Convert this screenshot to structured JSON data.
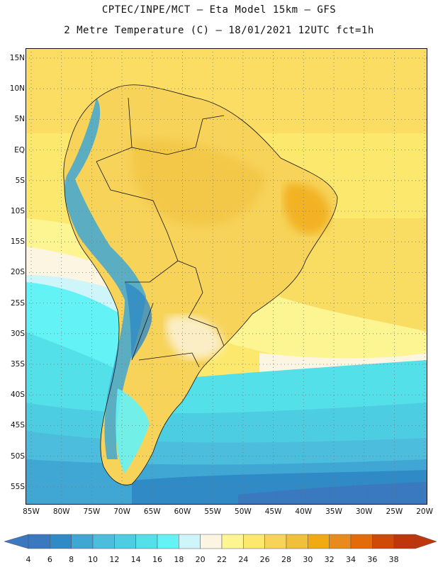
{
  "title_line1": "CPTEC/INPE/MCT –  Eta Model 15km – GFS",
  "title_line2": "2 Metre Temperature (C) – 18/01/2021 12UTC fct=1h",
  "lat_labels": [
    "15N",
    "10N",
    "5N",
    "EQ",
    "5S",
    "10S",
    "15S",
    "20S",
    "25S",
    "30S",
    "35S",
    "40S",
    "45S",
    "50S",
    "55S"
  ],
  "lon_labels": [
    "85W",
    "80W",
    "75W",
    "70W",
    "65W",
    "60W",
    "55W",
    "50W",
    "45W",
    "40W",
    "35W",
    "30W",
    "25W",
    "20W"
  ],
  "colorbar": {
    "ticks": [
      "4",
      "6",
      "8",
      "10",
      "12",
      "14",
      "16",
      "18",
      "20",
      "22",
      "24",
      "26",
      "28",
      "30",
      "32",
      "34",
      "36",
      "38"
    ],
    "colors": [
      "#3a78c0",
      "#2f8ac6",
      "#40a6d4",
      "#4cbddc",
      "#4dcde2",
      "#53e0e8",
      "#63f3f6",
      "#cdf5fa",
      "#fcf5e2",
      "#fdf592",
      "#fde86e",
      "#f7d35a",
      "#f0c03a",
      "#f1aa12",
      "#e98a1c",
      "#e36b0a",
      "#cf4a08",
      "#bf360c"
    ]
  }
}
